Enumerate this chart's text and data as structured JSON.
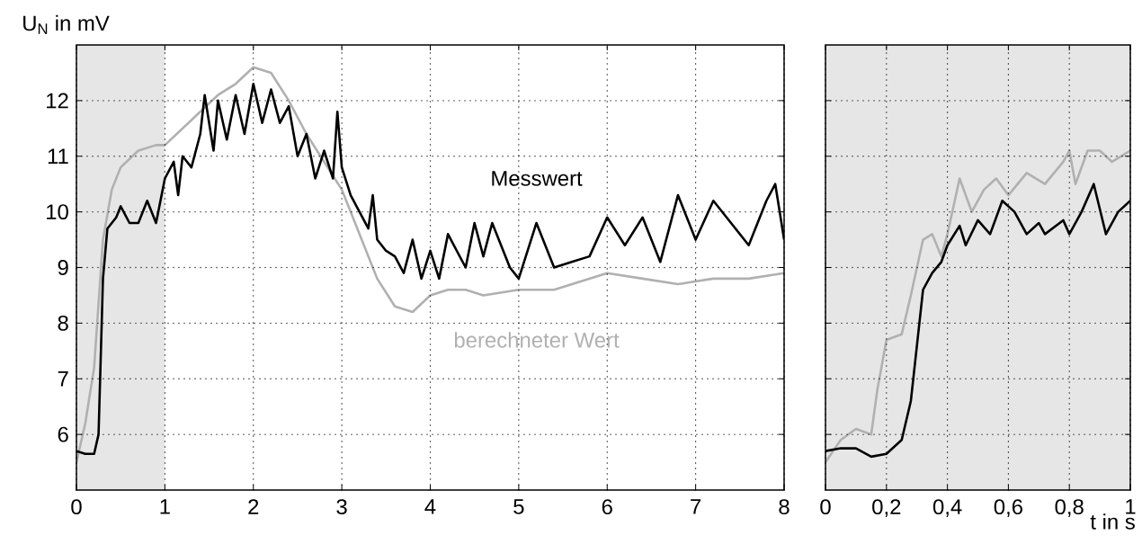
{
  "chart_data": [
    {
      "type": "line",
      "ylabel": "U$_{N}$ in mV",
      "xlim": [
        0,
        8
      ],
      "ylim": [
        5,
        13
      ],
      "xticks": [
        0,
        1,
        2,
        3,
        4,
        5,
        6,
        7,
        8
      ],
      "yticks": [
        6,
        7,
        8,
        9,
        10,
        11,
        12
      ],
      "grid": true,
      "bands": [
        {
          "axis": "x",
          "from": 0,
          "to": 1,
          "color": "#e6e6e6"
        }
      ],
      "series": [
        {
          "name": "berechneter Wert",
          "color": "#b0b0b0",
          "x": [
            0,
            0.1,
            0.2,
            0.3,
            0.4,
            0.5,
            0.7,
            0.9,
            1.0,
            1.2,
            1.4,
            1.6,
            1.8,
            2.0,
            2.2,
            2.4,
            2.6,
            2.8,
            3.0,
            3.2,
            3.4,
            3.6,
            3.8,
            4.0,
            4.2,
            4.4,
            4.6,
            5.0,
            5.4,
            6.0,
            6.4,
            6.8,
            7.2,
            7.6,
            8.0
          ],
          "values": [
            5.5,
            6.2,
            7.2,
            9.5,
            10.4,
            10.8,
            11.1,
            11.2,
            11.2,
            11.5,
            11.8,
            12.1,
            12.3,
            12.6,
            12.5,
            12.0,
            11.4,
            10.9,
            10.4,
            9.6,
            8.8,
            8.3,
            8.2,
            8.5,
            8.6,
            8.6,
            8.5,
            8.6,
            8.6,
            8.9,
            8.8,
            8.7,
            8.8,
            8.8,
            8.9
          ]
        },
        {
          "name": "Messwert",
          "color": "#000000",
          "x": [
            0,
            0.1,
            0.2,
            0.25,
            0.3,
            0.35,
            0.45,
            0.5,
            0.6,
            0.7,
            0.8,
            0.9,
            1.0,
            1.1,
            1.15,
            1.2,
            1.3,
            1.4,
            1.45,
            1.55,
            1.6,
            1.7,
            1.8,
            1.9,
            2.0,
            2.1,
            2.2,
            2.3,
            2.4,
            2.5,
            2.6,
            2.7,
            2.8,
            2.9,
            2.95,
            3.0,
            3.1,
            3.2,
            3.3,
            3.35,
            3.4,
            3.5,
            3.6,
            3.7,
            3.8,
            3.9,
            4.0,
            4.1,
            4.2,
            4.4,
            4.5,
            4.6,
            4.7,
            4.9,
            5.0,
            5.2,
            5.4,
            5.6,
            5.8,
            6.0,
            6.2,
            6.4,
            6.6,
            6.8,
            7.0,
            7.2,
            7.4,
            7.6,
            7.8,
            7.9,
            8.0
          ],
          "values": [
            5.7,
            5.65,
            5.65,
            6.0,
            8.8,
            9.7,
            9.9,
            10.1,
            9.8,
            9.8,
            10.2,
            9.8,
            10.6,
            10.9,
            10.3,
            11.0,
            10.8,
            11.4,
            12.1,
            11.1,
            12.0,
            11.3,
            12.1,
            11.4,
            12.3,
            11.6,
            12.2,
            11.6,
            11.9,
            11.0,
            11.4,
            10.6,
            11.1,
            10.6,
            11.8,
            10.8,
            10.3,
            10.0,
            9.7,
            10.3,
            9.5,
            9.3,
            9.2,
            8.9,
            9.5,
            8.8,
            9.3,
            8.8,
            9.6,
            9.0,
            9.8,
            9.2,
            9.8,
            9.0,
            8.8,
            9.8,
            9.0,
            9.1,
            9.2,
            9.9,
            9.4,
            9.9,
            9.1,
            10.3,
            9.5,
            10.2,
            9.8,
            9.4,
            10.2,
            10.5,
            9.5
          ]
        }
      ]
    },
    {
      "type": "line",
      "xlabel": "t in s",
      "xlim": [
        0,
        1
      ],
      "ylim": [
        5,
        13
      ],
      "xticks": [
        0,
        {
          "value": 0.2,
          "label": "0,2"
        },
        {
          "value": 0.4,
          "label": "0,4"
        },
        {
          "value": 0.6,
          "label": "0,6"
        },
        {
          "value": 0.8,
          "label": "0,8"
        },
        1
      ],
      "yticks": [
        6,
        7,
        8,
        9,
        10,
        11,
        12
      ],
      "grid": true,
      "tick_labels": "x",
      "bands": [
        {
          "axis": "x",
          "from": 0,
          "to": 1,
          "color": "#e6e6e6"
        }
      ],
      "series": [
        {
          "color": "#b0b0b0",
          "x": [
            0,
            0.05,
            0.1,
            0.15,
            0.17,
            0.2,
            0.25,
            0.28,
            0.32,
            0.35,
            0.38,
            0.4,
            0.44,
            0.48,
            0.52,
            0.56,
            0.6,
            0.66,
            0.72,
            0.78,
            0.8,
            0.82,
            0.86,
            0.9,
            0.94,
            1.0
          ],
          "values": [
            5.5,
            5.9,
            6.1,
            6.0,
            6.8,
            7.7,
            7.8,
            8.5,
            9.5,
            9.6,
            9.2,
            9.6,
            10.6,
            10.0,
            10.4,
            10.6,
            10.3,
            10.7,
            10.5,
            10.9,
            11.1,
            10.5,
            11.1,
            11.1,
            10.9,
            11.1
          ]
        },
        {
          "color": "#000000",
          "x": [
            0,
            0.05,
            0.1,
            0.15,
            0.2,
            0.25,
            0.28,
            0.3,
            0.32,
            0.35,
            0.38,
            0.4,
            0.44,
            0.46,
            0.5,
            0.54,
            0.58,
            0.62,
            0.66,
            0.7,
            0.72,
            0.78,
            0.8,
            0.84,
            0.88,
            0.92,
            0.96,
            1.0
          ],
          "values": [
            5.7,
            5.75,
            5.75,
            5.6,
            5.65,
            5.9,
            6.6,
            7.6,
            8.6,
            8.9,
            9.1,
            9.4,
            9.75,
            9.4,
            9.85,
            9.6,
            10.2,
            10.0,
            9.6,
            9.8,
            9.6,
            9.85,
            9.6,
            10.0,
            10.5,
            9.6,
            10.0,
            10.2
          ]
        }
      ]
    }
  ]
}
